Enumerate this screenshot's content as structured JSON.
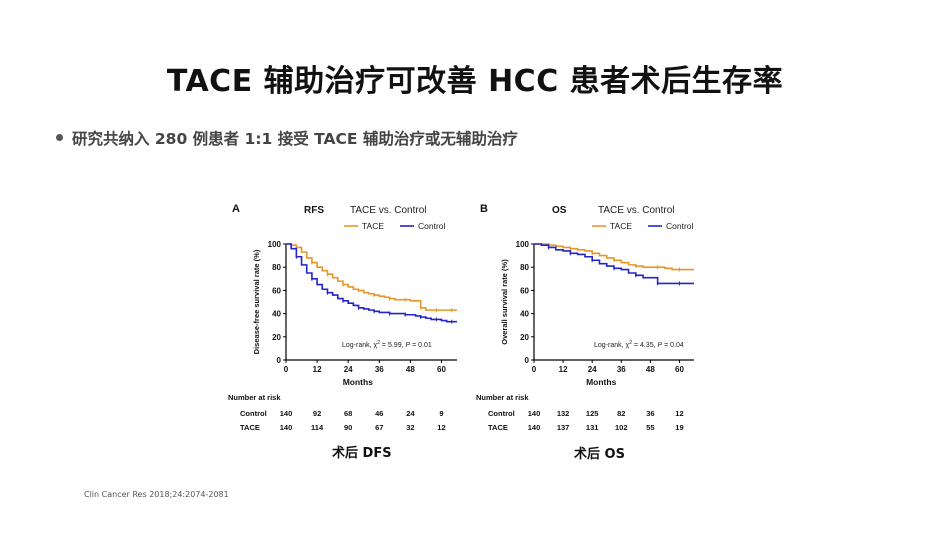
{
  "slide": {
    "title": "TACE 辅助治疗可改善 HCC 患者术后生存率",
    "bullet": "研究共纳入 280 例患者 1:1 接受 TACE 辅助治疗或无辅助治疗",
    "source": "Clin Cancer Res 2018;24:2074-2081"
  },
  "colors": {
    "tace": "#e8962a",
    "control": "#2424c8"
  },
  "chart_data": [
    {
      "type": "line",
      "panel_label": "A",
      "title": "RFS",
      "subtitle": "TACE vs. Control",
      "xlabel": "Months",
      "ylabel": "Disease-free survival rate (%)",
      "xlim": [
        0,
        66
      ],
      "ylim": [
        0,
        100
      ],
      "xticks": [
        0,
        12,
        24,
        36,
        48,
        60
      ],
      "yticks": [
        0,
        20,
        40,
        60,
        80,
        100
      ],
      "legend": "top",
      "annotation": {
        "prefix": "Log-rank, χ",
        "sup": "2",
        "mid": " = 5.99, ",
        "pvar": "P",
        "suffix": " = 0.01"
      },
      "caption": "术后 DFS",
      "series": [
        {
          "name": "TACE",
          "x": [
            0,
            2,
            4,
            6,
            8,
            10,
            12,
            14,
            16,
            18,
            20,
            22,
            24,
            26,
            28,
            30,
            32,
            34,
            36,
            38,
            40,
            42,
            44,
            46,
            48,
            50,
            52,
            54,
            56,
            58,
            60,
            62,
            64,
            66
          ],
          "y": [
            100,
            99,
            97,
            93,
            88,
            84,
            80,
            77,
            74,
            71,
            68,
            65,
            63,
            61,
            60,
            58,
            57,
            56,
            55,
            54,
            53,
            52,
            52,
            52,
            51,
            51,
            45,
            43,
            43,
            43,
            43,
            43,
            43,
            43
          ]
        },
        {
          "name": "Control",
          "x": [
            0,
            2,
            4,
            6,
            8,
            10,
            12,
            14,
            16,
            18,
            20,
            22,
            24,
            26,
            28,
            30,
            32,
            34,
            36,
            38,
            40,
            42,
            44,
            46,
            48,
            50,
            52,
            54,
            56,
            58,
            60,
            62,
            64,
            66
          ],
          "y": [
            100,
            96,
            89,
            82,
            75,
            70,
            65,
            61,
            58,
            56,
            53,
            51,
            49,
            47,
            45,
            44,
            43,
            42,
            41,
            41,
            40,
            40,
            40,
            39,
            39,
            38,
            37,
            36,
            35,
            35,
            34,
            33,
            33,
            33
          ]
        }
      ],
      "risk_table": {
        "header": "Number at risk",
        "rows": [
          {
            "label": "Control",
            "values": [
              "140",
              "92",
              "68",
              "46",
              "24",
              "9"
            ]
          },
          {
            "label": "TACE",
            "values": [
              "140",
              "114",
              "90",
              "67",
              "32",
              "12"
            ]
          }
        ]
      }
    },
    {
      "type": "line",
      "panel_label": "B",
      "title": "OS",
      "subtitle": "TACE vs. Control",
      "xlabel": "Months",
      "ylabel": "Overall survival rate (%)",
      "xlim": [
        0,
        66
      ],
      "ylim": [
        0,
        100
      ],
      "xticks": [
        0,
        12,
        24,
        36,
        48,
        60
      ],
      "yticks": [
        0,
        20,
        40,
        60,
        80,
        100
      ],
      "legend": "top",
      "annotation": {
        "prefix": "Log-rank, χ",
        "sup": "2",
        "mid": " = 4.35, ",
        "pvar": "P",
        "suffix": " = 0.04"
      },
      "caption": "术后 OS",
      "series": [
        {
          "name": "TACE",
          "x": [
            0,
            3,
            6,
            9,
            12,
            15,
            18,
            21,
            24,
            27,
            30,
            33,
            36,
            39,
            42,
            45,
            48,
            51,
            54,
            57,
            60,
            63,
            66
          ],
          "y": [
            100,
            100,
            99,
            98,
            97,
            96,
            95,
            94,
            92,
            90,
            88,
            86,
            84,
            82,
            81,
            80,
            80,
            80,
            79,
            78,
            78,
            78,
            78
          ]
        },
        {
          "name": "Control",
          "x": [
            0,
            3,
            6,
            9,
            12,
            15,
            18,
            21,
            24,
            27,
            30,
            33,
            36,
            39,
            42,
            45,
            48,
            51,
            54,
            57,
            60,
            63,
            66
          ],
          "y": [
            100,
            99,
            97,
            95,
            94,
            92,
            91,
            89,
            86,
            83,
            81,
            79,
            78,
            75,
            73,
            71,
            71,
            66,
            66,
            66,
            66,
            66,
            66
          ]
        }
      ],
      "risk_table": {
        "header": "Number at risk",
        "rows": [
          {
            "label": "Control",
            "values": [
              "140",
              "132",
              "125",
              "82",
              "36",
              "12"
            ]
          },
          {
            "label": "TACE",
            "values": [
              "140",
              "137",
              "131",
              "102",
              "55",
              "19"
            ]
          }
        ]
      }
    }
  ]
}
